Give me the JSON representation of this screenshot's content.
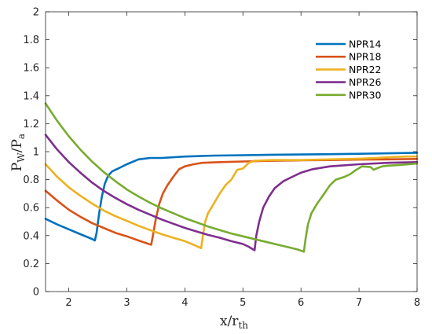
{
  "chart_data": {
    "type": "line",
    "xlabel": "x/r",
    "xlabel_sub": "th",
    "ylabel_main": "P",
    "ylabel_sub1": "W",
    "ylabel_mid": "/P",
    "ylabel_sub2": "a",
    "xlim": [
      1.6,
      8
    ],
    "ylim": [
      0,
      2
    ],
    "x_ticks": [
      2,
      3,
      4,
      5,
      6,
      7,
      8
    ],
    "y_ticks": [
      0,
      0.2,
      0.4,
      0.6,
      0.8,
      1,
      1.2,
      1.4,
      1.6,
      1.8,
      2
    ],
    "x_tick_labels": [
      "2",
      "3",
      "4",
      "5",
      "6",
      "7",
      "8"
    ],
    "y_tick_labels": [
      "0",
      "0.2",
      "0.4",
      "0.6",
      "0.8",
      "1",
      "1.2",
      "1.4",
      "1.6",
      "1.8",
      "2"
    ],
    "grid": false,
    "legend_position": "top-right",
    "series": [
      {
        "name": "NPR14",
        "color": "#0072BD",
        "points": [
          [
            1.6,
            0.52
          ],
          [
            1.8,
            0.48
          ],
          [
            2.0,
            0.445
          ],
          [
            2.2,
            0.41
          ],
          [
            2.35,
            0.385
          ],
          [
            2.43,
            0.37
          ],
          [
            2.45,
            0.365
          ],
          [
            2.48,
            0.42
          ],
          [
            2.52,
            0.55
          ],
          [
            2.57,
            0.68
          ],
          [
            2.62,
            0.77
          ],
          [
            2.68,
            0.83
          ],
          [
            2.75,
            0.86
          ],
          [
            2.85,
            0.88
          ],
          [
            3.0,
            0.91
          ],
          [
            3.2,
            0.945
          ],
          [
            3.4,
            0.955
          ],
          [
            3.6,
            0.955
          ],
          [
            4.0,
            0.965
          ],
          [
            4.5,
            0.972
          ],
          [
            5.0,
            0.975
          ],
          [
            5.5,
            0.978
          ],
          [
            6.0,
            0.98
          ],
          [
            6.5,
            0.982
          ],
          [
            7.0,
            0.985
          ],
          [
            7.5,
            0.988
          ],
          [
            8.0,
            0.992
          ]
        ]
      },
      {
        "name": "NPR18",
        "color": "#D95319",
        "points": [
          [
            1.6,
            0.72
          ],
          [
            1.8,
            0.65
          ],
          [
            2.0,
            0.585
          ],
          [
            2.2,
            0.535
          ],
          [
            2.4,
            0.49
          ],
          [
            2.6,
            0.455
          ],
          [
            2.8,
            0.42
          ],
          [
            3.0,
            0.395
          ],
          [
            3.2,
            0.365
          ],
          [
            3.38,
            0.34
          ],
          [
            3.42,
            0.335
          ],
          [
            3.45,
            0.4
          ],
          [
            3.5,
            0.52
          ],
          [
            3.56,
            0.63
          ],
          [
            3.62,
            0.7
          ],
          [
            3.7,
            0.76
          ],
          [
            3.8,
            0.82
          ],
          [
            3.9,
            0.875
          ],
          [
            4.0,
            0.895
          ],
          [
            4.15,
            0.91
          ],
          [
            4.3,
            0.92
          ],
          [
            4.6,
            0.925
          ],
          [
            5.0,
            0.93
          ],
          [
            5.5,
            0.935
          ],
          [
            6.0,
            0.938
          ],
          [
            6.5,
            0.94
          ],
          [
            7.0,
            0.943
          ],
          [
            7.5,
            0.945
          ],
          [
            8.0,
            0.948
          ]
        ]
      },
      {
        "name": "NPR22",
        "color": "#EDB120",
        "points": [
          [
            1.6,
            0.91
          ],
          [
            1.8,
            0.82
          ],
          [
            2.0,
            0.745
          ],
          [
            2.2,
            0.685
          ],
          [
            2.4,
            0.63
          ],
          [
            2.6,
            0.58
          ],
          [
            2.8,
            0.54
          ],
          [
            3.0,
            0.505
          ],
          [
            3.2,
            0.47
          ],
          [
            3.4,
            0.44
          ],
          [
            3.6,
            0.41
          ],
          [
            3.8,
            0.385
          ],
          [
            4.0,
            0.36
          ],
          [
            4.15,
            0.335
          ],
          [
            4.28,
            0.31
          ],
          [
            4.31,
            0.4
          ],
          [
            4.35,
            0.5
          ],
          [
            4.4,
            0.56
          ],
          [
            4.5,
            0.63
          ],
          [
            4.6,
            0.7
          ],
          [
            4.7,
            0.76
          ],
          [
            4.8,
            0.8
          ],
          [
            4.9,
            0.87
          ],
          [
            5.0,
            0.88
          ],
          [
            5.05,
            0.9
          ],
          [
            5.1,
            0.92
          ],
          [
            5.2,
            0.935
          ],
          [
            5.5,
            0.94
          ],
          [
            6.0,
            0.94
          ],
          [
            6.5,
            0.945
          ],
          [
            7.0,
            0.95
          ],
          [
            7.3,
            0.955
          ],
          [
            7.5,
            0.96
          ],
          [
            7.8,
            0.965
          ],
          [
            8.0,
            0.965
          ]
        ]
      },
      {
        "name": "NPR26",
        "color": "#7E2F8E",
        "points": [
          [
            1.6,
            1.12
          ],
          [
            1.8,
            1.015
          ],
          [
            2.0,
            0.925
          ],
          [
            2.2,
            0.85
          ],
          [
            2.4,
            0.78
          ],
          [
            2.6,
            0.72
          ],
          [
            2.8,
            0.67
          ],
          [
            3.0,
            0.625
          ],
          [
            3.2,
            0.585
          ],
          [
            3.4,
            0.55
          ],
          [
            3.6,
            0.515
          ],
          [
            3.8,
            0.485
          ],
          [
            4.0,
            0.455
          ],
          [
            4.2,
            0.43
          ],
          [
            4.4,
            0.405
          ],
          [
            4.6,
            0.385
          ],
          [
            4.8,
            0.36
          ],
          [
            5.0,
            0.34
          ],
          [
            5.1,
            0.32
          ],
          [
            5.2,
            0.295
          ],
          [
            5.23,
            0.4
          ],
          [
            5.28,
            0.5
          ],
          [
            5.35,
            0.6
          ],
          [
            5.45,
            0.68
          ],
          [
            5.55,
            0.74
          ],
          [
            5.7,
            0.79
          ],
          [
            5.85,
            0.82
          ],
          [
            6.0,
            0.85
          ],
          [
            6.2,
            0.875
          ],
          [
            6.5,
            0.895
          ],
          [
            7.0,
            0.91
          ],
          [
            7.5,
            0.92
          ],
          [
            8.0,
            0.925
          ]
        ]
      },
      {
        "name": "NPR30",
        "color": "#77AC30",
        "points": [
          [
            1.6,
            1.345
          ],
          [
            1.8,
            1.22
          ],
          [
            2.0,
            1.11
          ],
          [
            2.2,
            1.015
          ],
          [
            2.4,
            0.93
          ],
          [
            2.6,
            0.855
          ],
          [
            2.8,
            0.79
          ],
          [
            3.0,
            0.73
          ],
          [
            3.2,
            0.68
          ],
          [
            3.4,
            0.635
          ],
          [
            3.6,
            0.595
          ],
          [
            3.8,
            0.56
          ],
          [
            4.0,
            0.525
          ],
          [
            4.2,
            0.495
          ],
          [
            4.4,
            0.465
          ],
          [
            4.6,
            0.44
          ],
          [
            4.8,
            0.415
          ],
          [
            5.0,
            0.395
          ],
          [
            5.2,
            0.375
          ],
          [
            5.4,
            0.355
          ],
          [
            5.6,
            0.335
          ],
          [
            5.8,
            0.315
          ],
          [
            5.95,
            0.3
          ],
          [
            6.05,
            0.285
          ],
          [
            6.08,
            0.38
          ],
          [
            6.12,
            0.48
          ],
          [
            6.18,
            0.56
          ],
          [
            6.28,
            0.63
          ],
          [
            6.4,
            0.7
          ],
          [
            6.5,
            0.76
          ],
          [
            6.6,
            0.8
          ],
          [
            6.75,
            0.82
          ],
          [
            6.85,
            0.84
          ],
          [
            6.95,
            0.87
          ],
          [
            7.05,
            0.895
          ],
          [
            7.2,
            0.89
          ],
          [
            7.25,
            0.87
          ],
          [
            7.3,
            0.88
          ],
          [
            7.4,
            0.895
          ],
          [
            7.5,
            0.9
          ],
          [
            7.7,
            0.905
          ],
          [
            8.0,
            0.915
          ]
        ]
      }
    ]
  }
}
